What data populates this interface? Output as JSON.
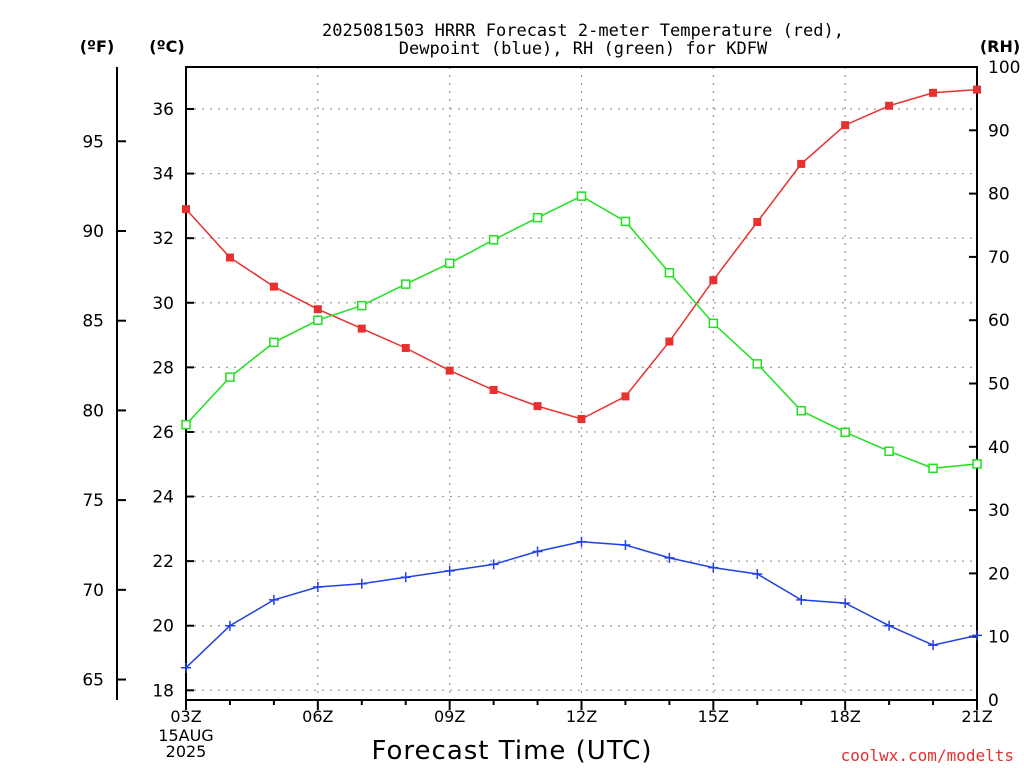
{
  "chart_data": {
    "type": "line",
    "title_line1": "2025081503 HRRR Forecast 2-meter Temperature (red),",
    "title_line2": "Dewpoint (blue), RH (green) for KDFW",
    "xlabel": "Forecast Time (UTC)",
    "unit_f": "(ºF)",
    "unit_c": "(ºC)",
    "unit_rh": "(RH)",
    "start_date_line1": "15AUG",
    "start_date_line2": "2025",
    "credit": "coolwx.com/modelts",
    "x": [
      "03Z",
      "04Z",
      "05Z",
      "06Z",
      "07Z",
      "08Z",
      "09Z",
      "10Z",
      "11Z",
      "12Z",
      "13Z",
      "14Z",
      "15Z",
      "16Z",
      "17Z",
      "18Z",
      "19Z",
      "20Z",
      "21Z"
    ],
    "x_tick_labels": [
      "03Z",
      "06Z",
      "09Z",
      "12Z",
      "15Z",
      "18Z",
      "21Z"
    ],
    "y_celsius_ticks": [
      18,
      20,
      22,
      24,
      26,
      28,
      30,
      32,
      34,
      36
    ],
    "y_celsius_range": [
      17.7,
      37.3
    ],
    "y_fahrenheit_ticks": [
      65,
      70,
      75,
      80,
      85,
      90,
      95
    ],
    "y_rh_ticks": [
      0,
      10,
      20,
      30,
      40,
      50,
      60,
      70,
      80,
      90,
      100
    ],
    "y_rh_range": [
      0,
      100
    ],
    "grid": true,
    "series": [
      {
        "name": "Temperature",
        "color": "#e83030",
        "marker": "filled-square",
        "axis": "celsius",
        "values": [
          32.9,
          31.4,
          30.5,
          29.8,
          29.2,
          28.6,
          27.9,
          27.3,
          26.8,
          26.4,
          27.1,
          28.8,
          30.7,
          32.5,
          34.3,
          35.5,
          36.1,
          36.5,
          36.6
        ]
      },
      {
        "name": "Dewpoint",
        "color": "#2040e8",
        "marker": "plus",
        "axis": "celsius",
        "values": [
          18.7,
          20.0,
          20.8,
          21.2,
          21.3,
          21.5,
          21.7,
          21.9,
          22.3,
          22.6,
          22.5,
          22.1,
          21.8,
          21.6,
          20.8,
          20.7,
          20.0,
          19.4,
          19.7
        ]
      },
      {
        "name": "RH",
        "color": "#20e020",
        "marker": "open-square",
        "axis": "rh",
        "values": [
          43.5,
          51.0,
          56.5,
          60.0,
          62.3,
          65.7,
          69.0,
          72.7,
          76.2,
          79.6,
          75.6,
          67.5,
          59.5,
          53.1,
          45.7,
          42.3,
          39.3,
          36.6,
          37.3
        ]
      }
    ]
  }
}
